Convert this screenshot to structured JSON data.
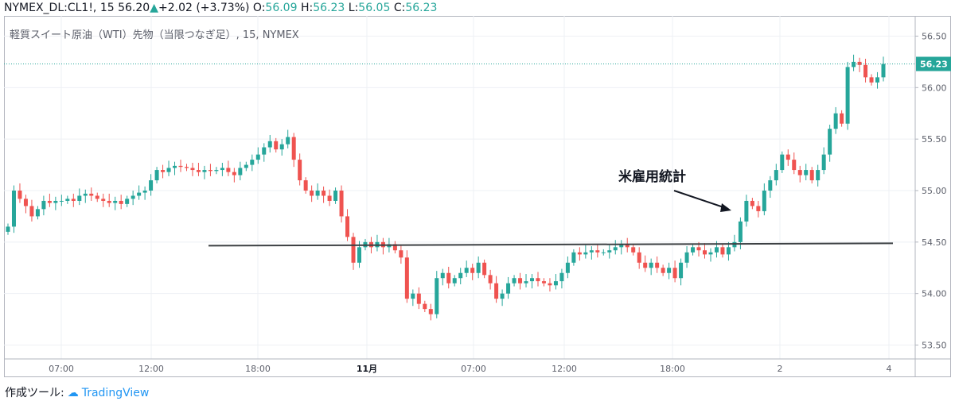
{
  "header": {
    "symbol": "NYMEX_DL:CL1!, 15",
    "last": "56.20",
    "change": "+2.02 (+3.73%)",
    "o_label": "O:",
    "o_value": "56.09",
    "h_label": "H:",
    "h_value": "56.23",
    "l_label": "L:",
    "l_value": "56.05",
    "c_label": "C:",
    "c_value": "56.23"
  },
  "chart_title": "軽質スイート原油（WTI）先物（当限つなぎ足）, 15, NYMEX",
  "annotation": "米雇用統計",
  "footer": {
    "label": "作成ツール:",
    "brand": "TradingView"
  },
  "colors": {
    "up": "#26a69a",
    "down": "#ef5350",
    "grid": "#eef0f4",
    "price_line": "#26a69a",
    "hline": "#3c4043"
  },
  "chart_data": {
    "type": "candlestick",
    "ylim": [
      53.45,
      56.55
    ],
    "y_ticks": [
      "56.50",
      "56.00",
      "55.50",
      "55.00",
      "54.50",
      "54.00",
      "53.50"
    ],
    "x_ticks": [
      "07:00",
      "12:00",
      "18:00",
      "11月",
      "07:00",
      "12:00",
      "18:00",
      "2",
      "4"
    ],
    "x_ticks_bold": [
      "11月"
    ],
    "last_price": "56.23",
    "horizontal_line": {
      "value": 54.48
    },
    "series": [
      {
        "closes": [
          54.65,
          55.0,
          54.92,
          54.85,
          54.75,
          54.82,
          54.9,
          54.88,
          54.9,
          54.9,
          54.92,
          54.9,
          54.95,
          54.97,
          54.95,
          54.92,
          54.9,
          54.88,
          54.9,
          54.87,
          54.92,
          54.95,
          54.98,
          55.0,
          55.1,
          55.2,
          55.18,
          55.22,
          55.24,
          55.23,
          55.22,
          55.2,
          55.18,
          55.2,
          55.19,
          55.2,
          55.22,
          55.18,
          55.15,
          55.22,
          55.25,
          55.3,
          55.35,
          55.42,
          55.48,
          55.4,
          55.45,
          55.52,
          55.3,
          55.1,
          55.0,
          54.95,
          55.0,
          54.95,
          54.9,
          55.0,
          54.75,
          54.55,
          54.3,
          54.45,
          54.5,
          54.45,
          54.5,
          54.45,
          54.48,
          54.42,
          54.35,
          53.95,
          54.0,
          53.9,
          53.85,
          53.8,
          54.15,
          54.2,
          54.1,
          54.15,
          54.2,
          54.25,
          54.2,
          54.3,
          54.18,
          54.1,
          53.95,
          54.0,
          54.1,
          54.15,
          54.1,
          54.12,
          54.15,
          54.12,
          54.1,
          54.08,
          54.12,
          54.2,
          54.3,
          54.4,
          54.38,
          54.4,
          54.42,
          54.4,
          54.4,
          54.42,
          54.45,
          54.48,
          54.45,
          54.4,
          54.3,
          54.25,
          54.3,
          54.25,
          54.2,
          54.25,
          54.15,
          54.3,
          54.4,
          54.45,
          54.42,
          54.38,
          54.4,
          54.45,
          54.38,
          54.45,
          54.5,
          54.7,
          54.9,
          54.85,
          54.8,
          55.0,
          55.1,
          55.2,
          55.35,
          55.3,
          55.2,
          55.15,
          55.2,
          55.1,
          55.2,
          55.35,
          55.6,
          55.75,
          55.65,
          56.2,
          56.25,
          56.22,
          56.1,
          56.05,
          56.1,
          56.23
        ]
      }
    ]
  }
}
